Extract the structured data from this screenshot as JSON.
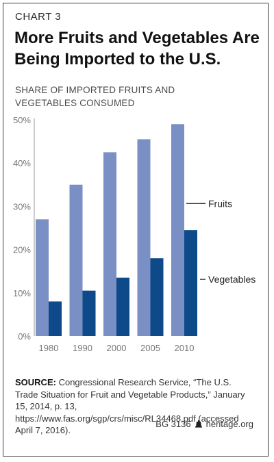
{
  "header": {
    "kicker": "CHART 3",
    "title": "More Fruits and Vegetables Are Being Imported to the U.S.",
    "subtitle": "SHARE OF IMPORTED FRUITS AND VEGETABLES CONSUMED"
  },
  "chart_data": {
    "type": "bar",
    "categories": [
      "1980",
      "1990",
      "2000",
      "2005",
      "2010"
    ],
    "series": [
      {
        "name": "Fruits",
        "values": [
          27,
          35,
          42.5,
          45.5,
          49
        ],
        "color": "#7a8fc3"
      },
      {
        "name": "Vegetables",
        "values": [
          8,
          10.5,
          13.5,
          18,
          24.5
        ],
        "color": "#0e4a8a"
      }
    ],
    "yticks": [
      "0%",
      "10%",
      "20%",
      "30%",
      "40%",
      "50%"
    ],
    "ylim": [
      0,
      50
    ],
    "grid": false,
    "legend": "right, inline labels"
  },
  "source": {
    "label": "SOURCE:",
    "text": "Congressional Research Service, “The U.S. Trade Situation for Fruit and Vegetable Products,” January 15, 2014, p. 13, https://www.fas.org/sgp/crs/misc/RL34468.pdf (accessed April 7, 2016)."
  },
  "footer": {
    "code": "BG 3136",
    "site": "heritage.org",
    "icon": "liberty-bell-icon"
  }
}
